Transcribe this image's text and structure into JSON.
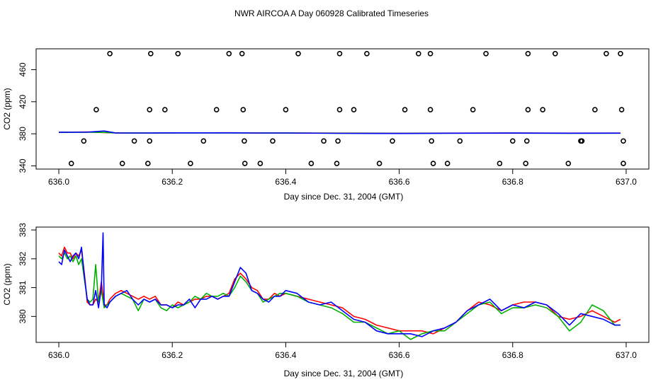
{
  "chart_data": {
    "title": "NWR AIRCOA A  Day 060928  Calibrated Timeseries",
    "panels": [
      {
        "type": "scatter",
        "xlabel": "Day since Dec. 31, 2004 (GMT)",
        "ylabel": "CO2 (ppm)",
        "xlim": [
          635.96,
          637.04
        ],
        "ylim": [
          336,
          486
        ],
        "xticks": [
          636.0,
          636.2,
          636.4,
          636.6,
          636.8,
          637.0
        ],
        "xtick_labels": [
          "636.0",
          "636.2",
          "636.4",
          "636.6",
          "636.8",
          "637.0"
        ],
        "yticks": [
          340,
          380,
          420,
          460
        ],
        "ytick_labels": [
          "340",
          "380",
          "420",
          "460"
        ],
        "markers": [
          {
            "x": 636.09,
            "y": 480
          },
          {
            "x": 636.162,
            "y": 480
          },
          {
            "x": 636.21,
            "y": 480
          },
          {
            "x": 636.3,
            "y": 480
          },
          {
            "x": 636.323,
            "y": 480
          },
          {
            "x": 636.422,
            "y": 480
          },
          {
            "x": 636.495,
            "y": 480
          },
          {
            "x": 636.543,
            "y": 480
          },
          {
            "x": 636.634,
            "y": 480
          },
          {
            "x": 636.655,
            "y": 480
          },
          {
            "x": 636.753,
            "y": 480
          },
          {
            "x": 636.827,
            "y": 480
          },
          {
            "x": 636.875,
            "y": 480
          },
          {
            "x": 636.965,
            "y": 480
          },
          {
            "x": 636.99,
            "y": 480
          },
          {
            "x": 636.066,
            "y": 410
          },
          {
            "x": 636.16,
            "y": 410
          },
          {
            "x": 636.187,
            "y": 410
          },
          {
            "x": 636.278,
            "y": 410
          },
          {
            "x": 636.325,
            "y": 410
          },
          {
            "x": 636.4,
            "y": 410
          },
          {
            "x": 636.495,
            "y": 410
          },
          {
            "x": 636.52,
            "y": 410
          },
          {
            "x": 636.61,
            "y": 410
          },
          {
            "x": 636.655,
            "y": 410
          },
          {
            "x": 636.73,
            "y": 410
          },
          {
            "x": 636.827,
            "y": 410
          },
          {
            "x": 636.853,
            "y": 410
          },
          {
            "x": 636.945,
            "y": 410
          },
          {
            "x": 636.992,
            "y": 410
          },
          {
            "x": 636.044,
            "y": 371
          },
          {
            "x": 636.133,
            "y": 371
          },
          {
            "x": 636.16,
            "y": 371
          },
          {
            "x": 636.255,
            "y": 371
          },
          {
            "x": 636.327,
            "y": 371
          },
          {
            "x": 636.377,
            "y": 371
          },
          {
            "x": 636.467,
            "y": 371
          },
          {
            "x": 636.492,
            "y": 371
          },
          {
            "x": 636.588,
            "y": 371
          },
          {
            "x": 636.657,
            "y": 371
          },
          {
            "x": 636.707,
            "y": 371
          },
          {
            "x": 636.8,
            "y": 371
          },
          {
            "x": 636.825,
            "y": 371
          },
          {
            "x": 636.92,
            "y": 371
          },
          {
            "x": 636.922,
            "y": 371
          },
          {
            "x": 636.995,
            "y": 371
          },
          {
            "x": 636.022,
            "y": 343
          },
          {
            "x": 636.112,
            "y": 343
          },
          {
            "x": 636.157,
            "y": 343
          },
          {
            "x": 636.232,
            "y": 343
          },
          {
            "x": 636.328,
            "y": 343
          },
          {
            "x": 636.355,
            "y": 343
          },
          {
            "x": 636.445,
            "y": 343
          },
          {
            "x": 636.49,
            "y": 343
          },
          {
            "x": 636.565,
            "y": 343
          },
          {
            "x": 636.66,
            "y": 343
          },
          {
            "x": 636.685,
            "y": 343
          },
          {
            "x": 636.777,
            "y": 343
          },
          {
            "x": 636.823,
            "y": 343
          },
          {
            "x": 636.898,
            "y": 343
          },
          {
            "x": 636.995,
            "y": 343
          }
        ],
        "series": [
          {
            "name": "red",
            "color": "#ff0000",
            "x": [
              636.0,
              636.05,
              636.08,
              636.1,
              636.15,
              636.2,
              636.3,
              636.35,
              636.4,
              636.5,
              636.6,
              636.7,
              636.8,
              636.9,
              636.99
            ],
            "values": [
              381.9,
              382.2,
              381.5,
              381.2,
              381.0,
              381.1,
              381.3,
              381.1,
              381.0,
              380.8,
              380.7,
              380.8,
              380.9,
              380.8,
              380.8
            ]
          },
          {
            "name": "green",
            "color": "#00b000",
            "x": [
              636.0,
              636.05,
              636.08,
              636.1,
              636.15,
              636.2,
              636.3,
              636.35,
              636.4,
              636.5,
              636.6,
              636.7,
              636.8,
              636.9,
              636.99
            ],
            "values": [
              381.8,
              382.0,
              381.7,
              381.0,
              380.9,
              381.0,
              381.1,
              381.0,
              380.9,
              380.7,
              380.6,
              380.7,
              380.8,
              380.6,
              380.7
            ]
          },
          {
            "name": "blue",
            "color": "#0000ff",
            "x": [
              636.0,
              636.05,
              636.08,
              636.1,
              636.15,
              636.2,
              636.3,
              636.35,
              636.4,
              636.5,
              636.6,
              636.7,
              636.8,
              636.9,
              636.99
            ],
            "values": [
              382.0,
              382.1,
              383.5,
              381.1,
              381.0,
              381.2,
              381.2,
              381.0,
              381.0,
              380.6,
              380.4,
              380.7,
              380.9,
              380.7,
              380.8
            ]
          }
        ]
      },
      {
        "type": "line",
        "xlabel": "Day since Dec. 31, 2004 (GMT)",
        "ylabel": "CO2 (ppm)",
        "xlim": [
          635.96,
          637.04
        ],
        "ylim": [
          379.1,
          383.1
        ],
        "xticks": [
          636.0,
          636.2,
          636.4,
          636.6,
          636.8,
          637.0
        ],
        "xtick_labels": [
          "636.0",
          "636.2",
          "636.4",
          "636.6",
          "636.8",
          "637.0"
        ],
        "yticks": [
          380,
          381,
          382,
          383
        ],
        "ytick_labels": [
          "380",
          "381",
          "382",
          "383"
        ],
        "series": [
          {
            "name": "red",
            "color": "#ff0000",
            "x": [
              636.0,
              636.005,
              636.01,
              636.015,
              636.02,
              636.025,
              636.03,
              636.035,
              636.04,
              636.045,
              636.05,
              636.055,
              636.06,
              636.065,
              636.07,
              636.075,
              636.08,
              636.085,
              636.09,
              636.1,
              636.11,
              636.12,
              636.13,
              636.14,
              636.15,
              636.16,
              636.17,
              636.18,
              636.19,
              636.2,
              636.21,
              636.22,
              636.23,
              636.24,
              636.25,
              636.26,
              636.27,
              636.28,
              636.29,
              636.3,
              636.31,
              636.32,
              636.33,
              636.34,
              636.35,
              636.36,
              636.37,
              636.38,
              636.39,
              636.4,
              636.42,
              636.44,
              636.46,
              636.48,
              636.5,
              636.52,
              636.54,
              636.56,
              636.58,
              636.6,
              636.62,
              636.64,
              636.66,
              636.68,
              636.7,
              636.72,
              636.74,
              636.76,
              636.78,
              636.8,
              636.82,
              636.84,
              636.86,
              636.88,
              636.9,
              636.92,
              636.94,
              636.96,
              636.98,
              636.99
            ],
            "values": [
              382.2,
              382.1,
              382.4,
              382.2,
              382.2,
              382.0,
              382.2,
              382.1,
              382.3,
              381.5,
              380.5,
              380.4,
              380.4,
              380.6,
              380.5,
              381.2,
              380.4,
              380.4,
              380.6,
              380.8,
              380.9,
              380.8,
              380.7,
              380.6,
              380.7,
              380.6,
              380.7,
              380.4,
              380.4,
              380.3,
              380.5,
              380.4,
              380.5,
              380.6,
              380.6,
              380.7,
              380.7,
              380.6,
              380.7,
              380.8,
              381.3,
              381.5,
              381.3,
              381.0,
              380.9,
              380.6,
              380.6,
              380.8,
              380.7,
              380.8,
              380.7,
              380.6,
              380.5,
              380.4,
              380.3,
              380.0,
              379.9,
              379.7,
              379.6,
              379.5,
              379.5,
              379.5,
              379.4,
              379.6,
              379.8,
              380.2,
              380.5,
              380.4,
              380.2,
              380.4,
              380.5,
              380.5,
              380.4,
              380.0,
              379.9,
              380.0,
              380.2,
              380.0,
              379.8,
              379.9
            ]
          },
          {
            "name": "green",
            "color": "#00b000",
            "x": [
              636.0,
              636.005,
              636.01,
              636.015,
              636.02,
              636.025,
              636.03,
              636.035,
              636.04,
              636.045,
              636.05,
              636.055,
              636.06,
              636.065,
              636.07,
              636.075,
              636.08,
              636.085,
              636.09,
              636.1,
              636.11,
              636.12,
              636.13,
              636.14,
              636.15,
              636.16,
              636.17,
              636.18,
              636.19,
              636.2,
              636.21,
              636.22,
              636.23,
              636.24,
              636.25,
              636.26,
              636.27,
              636.28,
              636.29,
              636.3,
              636.31,
              636.32,
              636.33,
              636.34,
              636.35,
              636.36,
              636.37,
              636.38,
              636.39,
              636.4,
              636.42,
              636.44,
              636.46,
              636.48,
              636.5,
              636.52,
              636.54,
              636.56,
              636.58,
              636.6,
              636.62,
              636.64,
              636.66,
              636.68,
              636.7,
              636.72,
              636.74,
              636.76,
              636.78,
              636.8,
              636.82,
              636.84,
              636.86,
              636.88,
              636.9,
              636.92,
              636.94,
              636.96,
              636.98,
              636.99
            ],
            "values": [
              382.1,
              382.0,
              382.2,
              382.0,
              382.1,
              381.9,
              382.1,
              381.8,
              382.0,
              381.3,
              380.6,
              380.5,
              380.6,
              381.8,
              380.5,
              380.9,
              380.3,
              380.4,
              380.5,
              380.7,
              380.8,
              380.7,
              380.6,
              380.2,
              380.6,
              380.5,
              380.6,
              380.3,
              380.2,
              380.4,
              380.3,
              380.4,
              380.5,
              380.7,
              380.6,
              380.8,
              380.7,
              380.7,
              380.8,
              380.7,
              381.0,
              381.4,
              381.2,
              380.9,
              380.8,
              380.5,
              380.6,
              380.7,
              380.8,
              380.8,
              380.7,
              380.5,
              380.4,
              380.3,
              380.1,
              379.8,
              379.8,
              379.6,
              379.4,
              379.5,
              379.2,
              379.4,
              379.5,
              379.5,
              379.8,
              380.1,
              380.4,
              380.5,
              380.1,
              380.3,
              380.3,
              380.4,
              380.3,
              380.0,
              379.5,
              379.8,
              380.4,
              380.2,
              379.7,
              379.7
            ]
          },
          {
            "name": "blue",
            "color": "#0000ff",
            "x": [
              636.0,
              636.005,
              636.01,
              636.015,
              636.02,
              636.025,
              636.03,
              636.035,
              636.04,
              636.045,
              636.05,
              636.055,
              636.06,
              636.065,
              636.07,
              636.075,
              636.078,
              636.08,
              636.085,
              636.09,
              636.1,
              636.11,
              636.12,
              636.13,
              636.14,
              636.15,
              636.16,
              636.17,
              636.18,
              636.19,
              636.2,
              636.21,
              636.22,
              636.23,
              636.24,
              636.25,
              636.26,
              636.27,
              636.28,
              636.29,
              636.3,
              636.31,
              636.32,
              636.33,
              636.34,
              636.35,
              636.36,
              636.37,
              636.38,
              636.39,
              636.4,
              636.42,
              636.44,
              636.46,
              636.48,
              636.5,
              636.52,
              636.54,
              636.56,
              636.58,
              636.6,
              636.62,
              636.64,
              636.66,
              636.68,
              636.7,
              636.72,
              636.74,
              636.76,
              636.78,
              636.8,
              636.82,
              636.84,
              636.86,
              636.88,
              636.9,
              636.92,
              636.94,
              636.96,
              636.98,
              636.99
            ],
            "values": [
              381.9,
              381.8,
              382.3,
              382.1,
              381.9,
              382.1,
              382.2,
              382.0,
              382.4,
              381.4,
              380.6,
              380.4,
              380.4,
              380.9,
              380.3,
              381.0,
              382.9,
              380.4,
              380.3,
              380.5,
              380.7,
              380.8,
              380.9,
              380.6,
              380.4,
              380.6,
              380.5,
              380.6,
              380.4,
              380.4,
              380.3,
              380.4,
              380.4,
              380.6,
              380.3,
              380.6,
              380.6,
              380.7,
              380.6,
              380.7,
              380.7,
              381.2,
              381.7,
              381.5,
              380.9,
              380.8,
              380.6,
              380.5,
              380.7,
              380.7,
              380.9,
              380.8,
              380.5,
              380.4,
              380.5,
              380.2,
              379.9,
              379.8,
              379.5,
              379.4,
              379.4,
              379.4,
              379.3,
              379.5,
              379.6,
              379.8,
              380.2,
              380.4,
              380.6,
              380.2,
              380.4,
              380.3,
              380.5,
              380.4,
              380.1,
              379.7,
              380.1,
              380.0,
              379.9,
              379.7,
              379.7
            ]
          }
        ]
      }
    ]
  }
}
